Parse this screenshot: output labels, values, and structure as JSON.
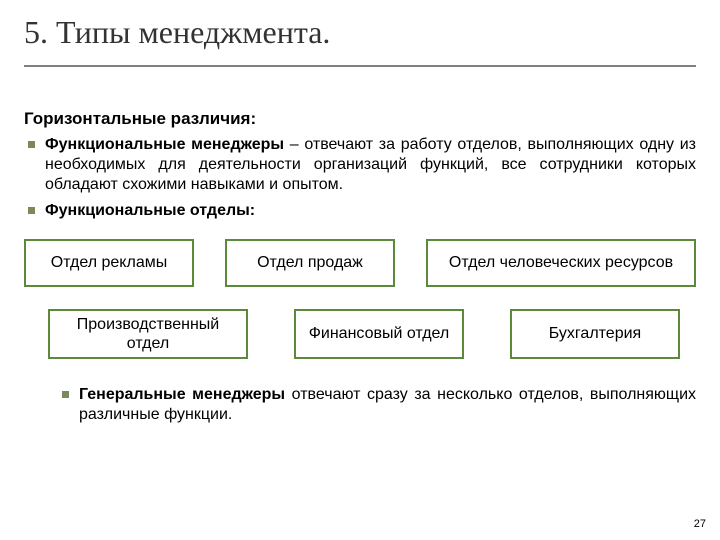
{
  "title": "5. Типы менеджмента.",
  "subhead": "Горизонтальные различия:",
  "colors": {
    "bullet": "#7a8a5a",
    "box_border": "#5a8a3a",
    "rule": "#808080",
    "text": "#000000",
    "title": "#333333",
    "background": "#ffffff"
  },
  "fonts": {
    "title_family": "Georgia, 'Times New Roman', serif",
    "title_size_pt": 24,
    "body_family": "Arial, sans-serif",
    "body_size_pt": 12,
    "subhead_size_pt": 13
  },
  "bullets": [
    {
      "runin": "Функциональные менеджеры",
      "rest": " – отвечают за работу отделов, выполняющих одну из необходимых для деятельности организаций функций, все сотрудники которых обладают схожими навыками и опытом."
    },
    {
      "runin": "Функциональные отделы:",
      "rest": ""
    }
  ],
  "row1": [
    "Отдел рекламы",
    "Отдел продаж",
    "Отдел человеческих ресурсов"
  ],
  "row2": [
    "Производственный отдел",
    "Финансовый отдел",
    "Бухгалтерия"
  ],
  "footnote": {
    "runin": "Генеральные менеджеры",
    "rest": " отвечают сразу за несколько отделов, выполняющих различные функции."
  },
  "page_number": "27"
}
